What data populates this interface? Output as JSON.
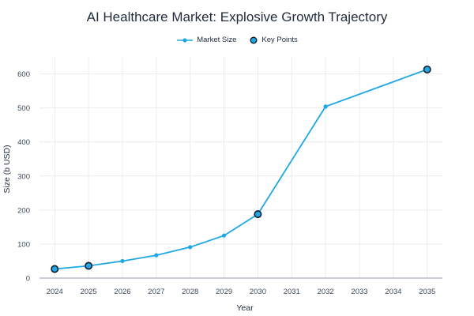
{
  "chart_data": {
    "type": "line",
    "title": "AI Healthcare Market: Explosive Growth Trajectory",
    "xlabel": "Year",
    "ylabel": "Size (b USD)",
    "x": [
      2024,
      2025,
      2026,
      2027,
      2028,
      2029,
      2030,
      2032,
      2035
    ],
    "x_ticks": [
      "2024",
      "2025",
      "2026",
      "2027",
      "2028",
      "2029",
      "2030",
      "2031",
      "2032",
      "2033",
      "2034",
      "2035"
    ],
    "y_ticks": [
      "0",
      "100",
      "200",
      "300",
      "400",
      "500",
      "600"
    ],
    "xlim": [
      2023.55,
      2035.45
    ],
    "ylim": [
      0,
      650
    ],
    "grid": true,
    "legend_position": "top-center",
    "series": [
      {
        "name": "Market Size",
        "kind": "line-markers",
        "color": "#1ea7e4",
        "x": [
          2024,
          2025,
          2026,
          2027,
          2028,
          2029,
          2030,
          2032,
          2035
        ],
        "values": [
          26.7,
          36,
          50,
          67,
          91,
          125,
          187.7,
          504,
          613
        ]
      },
      {
        "name": "Key Points",
        "kind": "markers",
        "color": "#1ea7e4",
        "edge_color": "#0d1b2a",
        "x": [
          2024,
          2025,
          2030,
          2035
        ],
        "values": [
          26.7,
          36,
          187.7,
          613
        ]
      }
    ]
  }
}
